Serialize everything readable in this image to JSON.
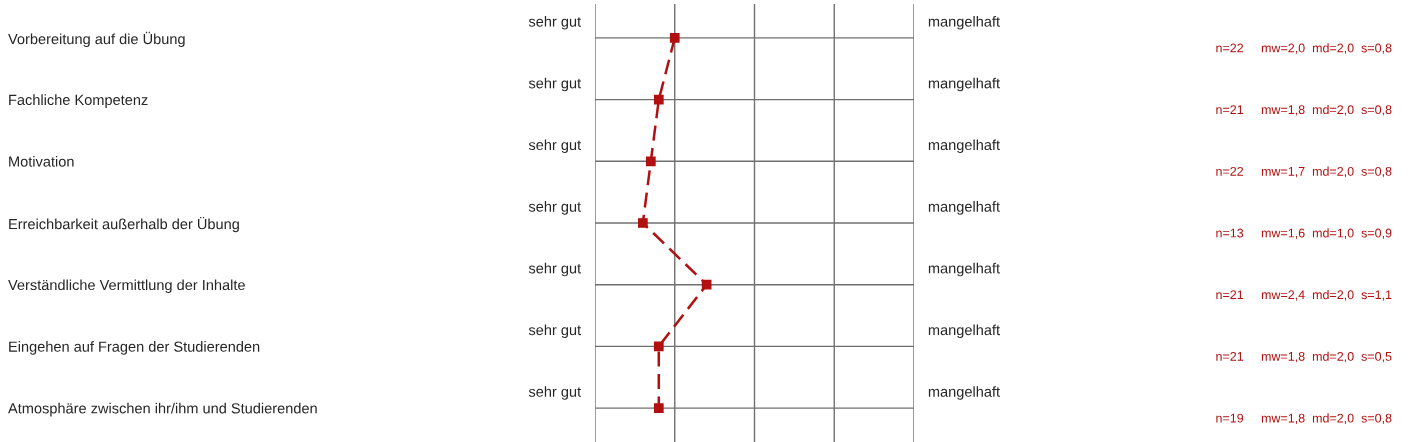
{
  "chart_data": {
    "type": "line",
    "orientation": "horizontal",
    "categories": [
      "Vorbereitung auf die Übung",
      "Fachliche Kompetenz",
      "Motivation",
      "Erreichbarkeit außerhalb der Übung",
      "Verständliche Vermittlung der Inhalte",
      "Eingehen auf Fragen der Studierenden",
      "Atmosphäre zwischen ihr/ihm und Studierenden"
    ],
    "series": [
      {
        "color": "#b01010",
        "values": [
          2.0,
          1.8,
          1.7,
          1.6,
          2.4,
          1.8,
          1.8
        ],
        "value_labels": [
          "n=22     mw=2,0  md=2,0  s=0,8",
          "n=21     mw=1,8  md=2,0  s=0,8",
          "n=22     mw=1,7  md=2,0  s=0,8",
          "n=13     mw=1,6  md=1,0  s=0,9",
          "n=21     mw=2,4  md=2,0  s=1,1",
          "n=21     mw=1,8  md=2,0  s=0,5",
          "n=19     mw=1,8  md=2,0  s=0,8"
        ]
      }
    ],
    "xlim": [
      1,
      5
    ],
    "xticks": [
      {
        "value": 1,
        "label": null
      },
      {
        "value": 2,
        "label": null
      },
      {
        "value": 3,
        "label": null
      },
      {
        "value": 4,
        "label": null
      },
      {
        "value": 5,
        "label": null
      }
    ],
    "tick_labels": "y",
    "grid": true,
    "marker": "square",
    "line_style": "dashed",
    "annotations": [
      "sehr gut",
      "mangelhaft",
      "sehr gut",
      "mangelhaft",
      "sehr gut",
      "mangelhaft",
      "sehr gut",
      "mangelhaft",
      "sehr gut",
      "mangelhaft",
      "sehr gut",
      "mangelhaft",
      "sehr gut",
      "mangelhaft"
    ]
  }
}
